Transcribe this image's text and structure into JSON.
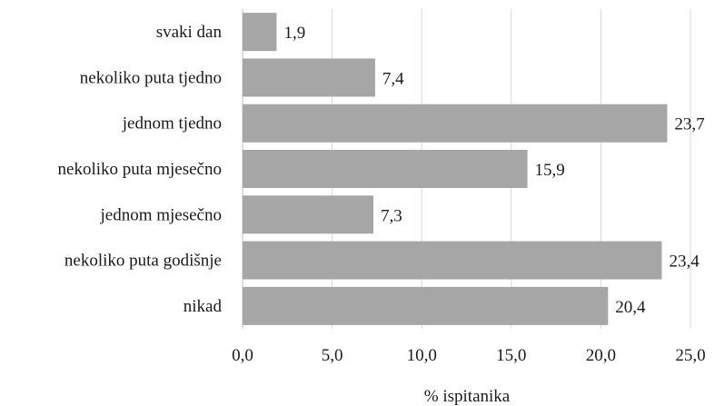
{
  "chart_data": {
    "type": "bar",
    "orientation": "horizontal",
    "categories": [
      "svaki dan",
      "nekoliko puta tjedno",
      "jednom tjedno",
      "nekoliko puta mjesečno",
      "jednom mjesečno",
      "nekoliko puta godišnje",
      "nikad"
    ],
    "values": [
      1.9,
      7.4,
      23.7,
      15.9,
      7.3,
      23.4,
      20.4
    ],
    "value_labels": [
      "1,9",
      "7,4",
      "23,7",
      "15,9",
      "7,3",
      "23,4",
      "20,4"
    ],
    "xlim": [
      0,
      25
    ],
    "xticks": [
      0,
      5,
      10,
      15,
      20,
      25
    ],
    "xtick_labels": [
      "0,0",
      "5,0",
      "10,0",
      "15,0",
      "20,0",
      "25,0"
    ],
    "xlabel": "% ispitanika",
    "title": "",
    "grid": true,
    "bar_color": "#a6a6a6"
  }
}
